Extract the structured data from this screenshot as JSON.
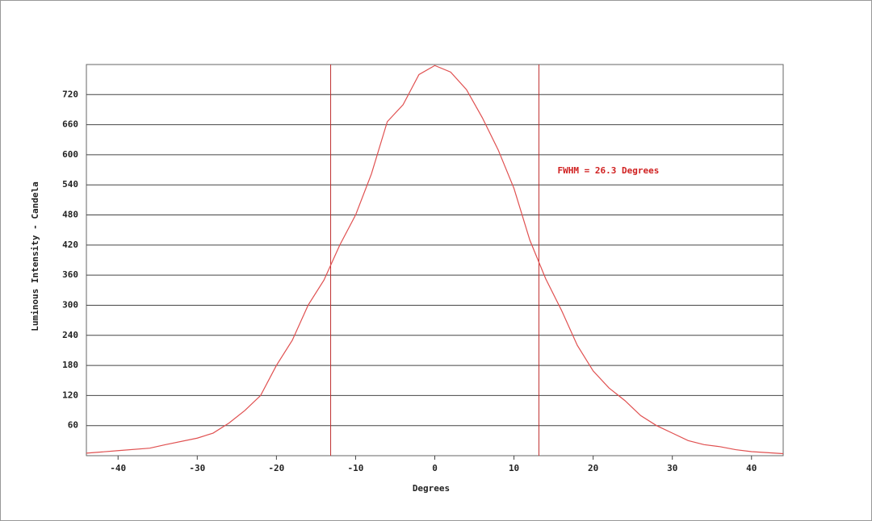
{
  "chart_data": {
    "type": "line",
    "x_label": "Degrees",
    "y_label": "Luminous Intensity - Candela",
    "x": [
      -44,
      -40,
      -36,
      -34,
      -30,
      -28,
      -26,
      -24,
      -22,
      -20,
      -18,
      -16,
      -14,
      -12,
      -10,
      -8,
      -6,
      -4,
      -2,
      0,
      2,
      4,
      6,
      8,
      10,
      12,
      14,
      16,
      18,
      20,
      22,
      24,
      26,
      28,
      30,
      32,
      34,
      36,
      38,
      40,
      44
    ],
    "series": [
      {
        "color": "#e05050",
        "values": [
          5,
          10,
          15,
          22,
          35,
          45,
          65,
          90,
          120,
          180,
          230,
          300,
          350,
          420,
          480,
          562,
          666,
          700,
          760,
          778,
          765,
          730,
          674,
          610,
          533,
          430,
          353,
          290,
          220,
          169,
          135,
          110,
          80,
          60,
          45,
          30,
          22,
          18,
          12,
          8,
          4
        ]
      }
    ],
    "markers": [
      -13.15,
      13.15
    ],
    "marker_color": "#c03030",
    "annotation": {
      "text": "FWHM = 26.3 Degrees",
      "x": 15.5,
      "y": 568,
      "color": "#d02020"
    },
    "xlim": [
      -44,
      44
    ],
    "ylim": [
      0,
      780
    ],
    "xticks": [
      -40,
      -30,
      -20,
      -10,
      0,
      10,
      20,
      30,
      40
    ],
    "yticks": [
      60,
      120,
      180,
      240,
      300,
      360,
      420,
      480,
      540,
      600,
      660,
      720
    ],
    "grid": true
  }
}
